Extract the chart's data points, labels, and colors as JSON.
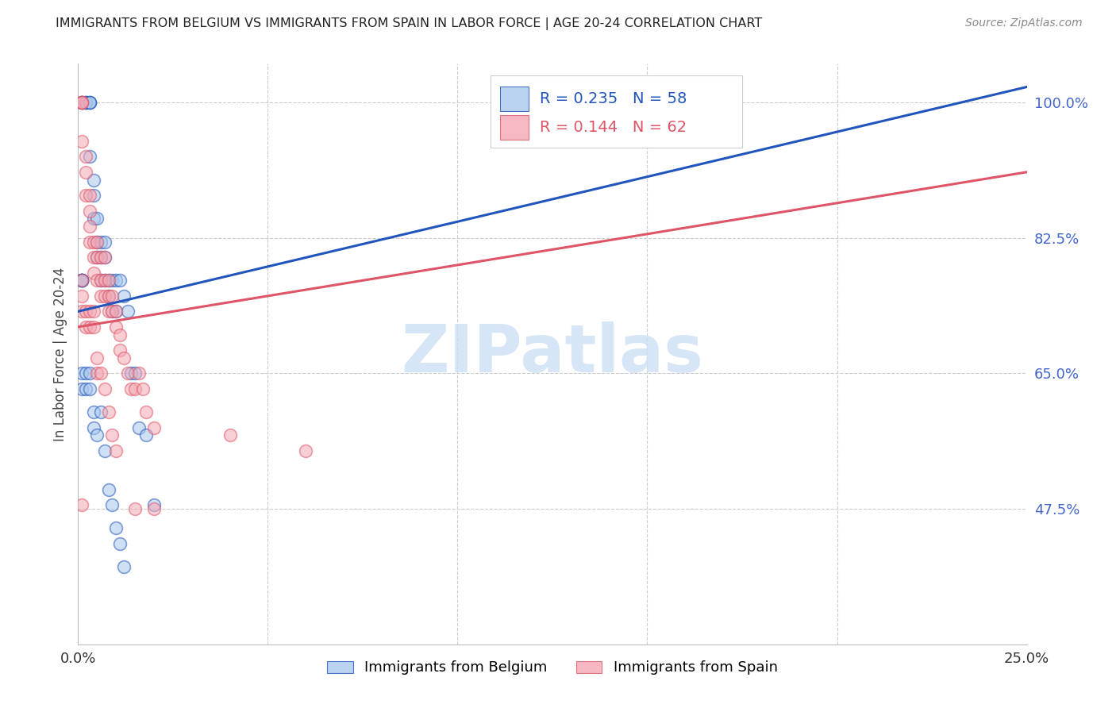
{
  "title": "IMMIGRANTS FROM BELGIUM VS IMMIGRANTS FROM SPAIN IN LABOR FORCE | AGE 20-24 CORRELATION CHART",
  "source": "Source: ZipAtlas.com",
  "ylabel": "In Labor Force | Age 20-24",
  "belgium_R": 0.235,
  "belgium_N": 58,
  "spain_R": 0.144,
  "spain_N": 62,
  "belgium_color": "#a8c8ee",
  "spain_color": "#f4a8b4",
  "belgium_line_color": "#2255bb",
  "spain_line_color": "#dd5566",
  "watermark_text": "ZIPatlas",
  "watermark_color": "#cce0f5",
  "xlim": [
    0.0,
    0.25
  ],
  "ylim": [
    0.3,
    1.05
  ],
  "yticks": [
    0.475,
    0.65,
    0.825,
    1.0
  ],
  "ytick_labels": [
    "47.5%",
    "65.0%",
    "82.5%",
    "100.0%"
  ],
  "xtick_vals": [
    0.0,
    0.05,
    0.1,
    0.15,
    0.2,
    0.25
  ],
  "xtick_labels": [
    "0.0%",
    "",
    "",
    "",
    "",
    "25.0%"
  ],
  "legend_labels": [
    "Immigrants from Belgium",
    "Immigrants from Spain"
  ],
  "belgium_x": [
    0.001,
    0.001,
    0.001,
    0.002,
    0.002,
    0.002,
    0.003,
    0.003,
    0.003,
    0.003,
    0.004,
    0.004,
    0.004,
    0.005,
    0.005,
    0.005,
    0.006,
    0.006,
    0.006,
    0.007,
    0.007,
    0.007,
    0.008,
    0.008,
    0.009,
    0.009,
    0.01,
    0.01,
    0.011,
    0.012,
    0.013,
    0.014,
    0.015,
    0.016,
    0.018,
    0.02,
    0.001,
    0.001,
    0.001,
    0.001,
    0.001,
    0.001,
    0.001,
    0.001,
    0.002,
    0.002,
    0.003,
    0.003,
    0.004,
    0.004,
    0.005,
    0.006,
    0.007,
    0.008,
    0.009,
    0.01,
    0.011,
    0.012
  ],
  "belgium_y": [
    1.0,
    1.0,
    1.0,
    1.0,
    1.0,
    1.0,
    1.0,
    1.0,
    1.0,
    0.93,
    0.9,
    0.88,
    0.85,
    0.85,
    0.82,
    0.8,
    0.82,
    0.8,
    0.77,
    0.82,
    0.8,
    0.77,
    0.77,
    0.75,
    0.77,
    0.73,
    0.77,
    0.73,
    0.77,
    0.75,
    0.73,
    0.65,
    0.65,
    0.58,
    0.57,
    0.48,
    0.77,
    0.77,
    0.77,
    0.77,
    0.77,
    0.77,
    0.65,
    0.63,
    0.65,
    0.63,
    0.65,
    0.63,
    0.6,
    0.58,
    0.57,
    0.6,
    0.55,
    0.5,
    0.48,
    0.45,
    0.43,
    0.4
  ],
  "spain_x": [
    0.001,
    0.001,
    0.001,
    0.001,
    0.002,
    0.002,
    0.002,
    0.003,
    0.003,
    0.003,
    0.003,
    0.004,
    0.004,
    0.004,
    0.005,
    0.005,
    0.005,
    0.006,
    0.006,
    0.006,
    0.007,
    0.007,
    0.007,
    0.008,
    0.008,
    0.008,
    0.009,
    0.009,
    0.01,
    0.01,
    0.011,
    0.011,
    0.012,
    0.013,
    0.014,
    0.015,
    0.016,
    0.017,
    0.018,
    0.02,
    0.001,
    0.001,
    0.001,
    0.002,
    0.002,
    0.003,
    0.003,
    0.004,
    0.004,
    0.005,
    0.005,
    0.006,
    0.007,
    0.008,
    0.009,
    0.01,
    0.015,
    0.02,
    0.04,
    0.06,
    0.155,
    0.001
  ],
  "spain_y": [
    1.0,
    1.0,
    1.0,
    0.95,
    0.93,
    0.91,
    0.88,
    0.88,
    0.86,
    0.84,
    0.82,
    0.82,
    0.8,
    0.78,
    0.82,
    0.8,
    0.77,
    0.8,
    0.77,
    0.75,
    0.8,
    0.77,
    0.75,
    0.77,
    0.75,
    0.73,
    0.75,
    0.73,
    0.73,
    0.71,
    0.7,
    0.68,
    0.67,
    0.65,
    0.63,
    0.63,
    0.65,
    0.63,
    0.6,
    0.58,
    0.77,
    0.75,
    0.73,
    0.73,
    0.71,
    0.73,
    0.71,
    0.73,
    0.71,
    0.67,
    0.65,
    0.65,
    0.63,
    0.6,
    0.57,
    0.55,
    0.475,
    0.475,
    0.57,
    0.55,
    1.0,
    0.48
  ]
}
